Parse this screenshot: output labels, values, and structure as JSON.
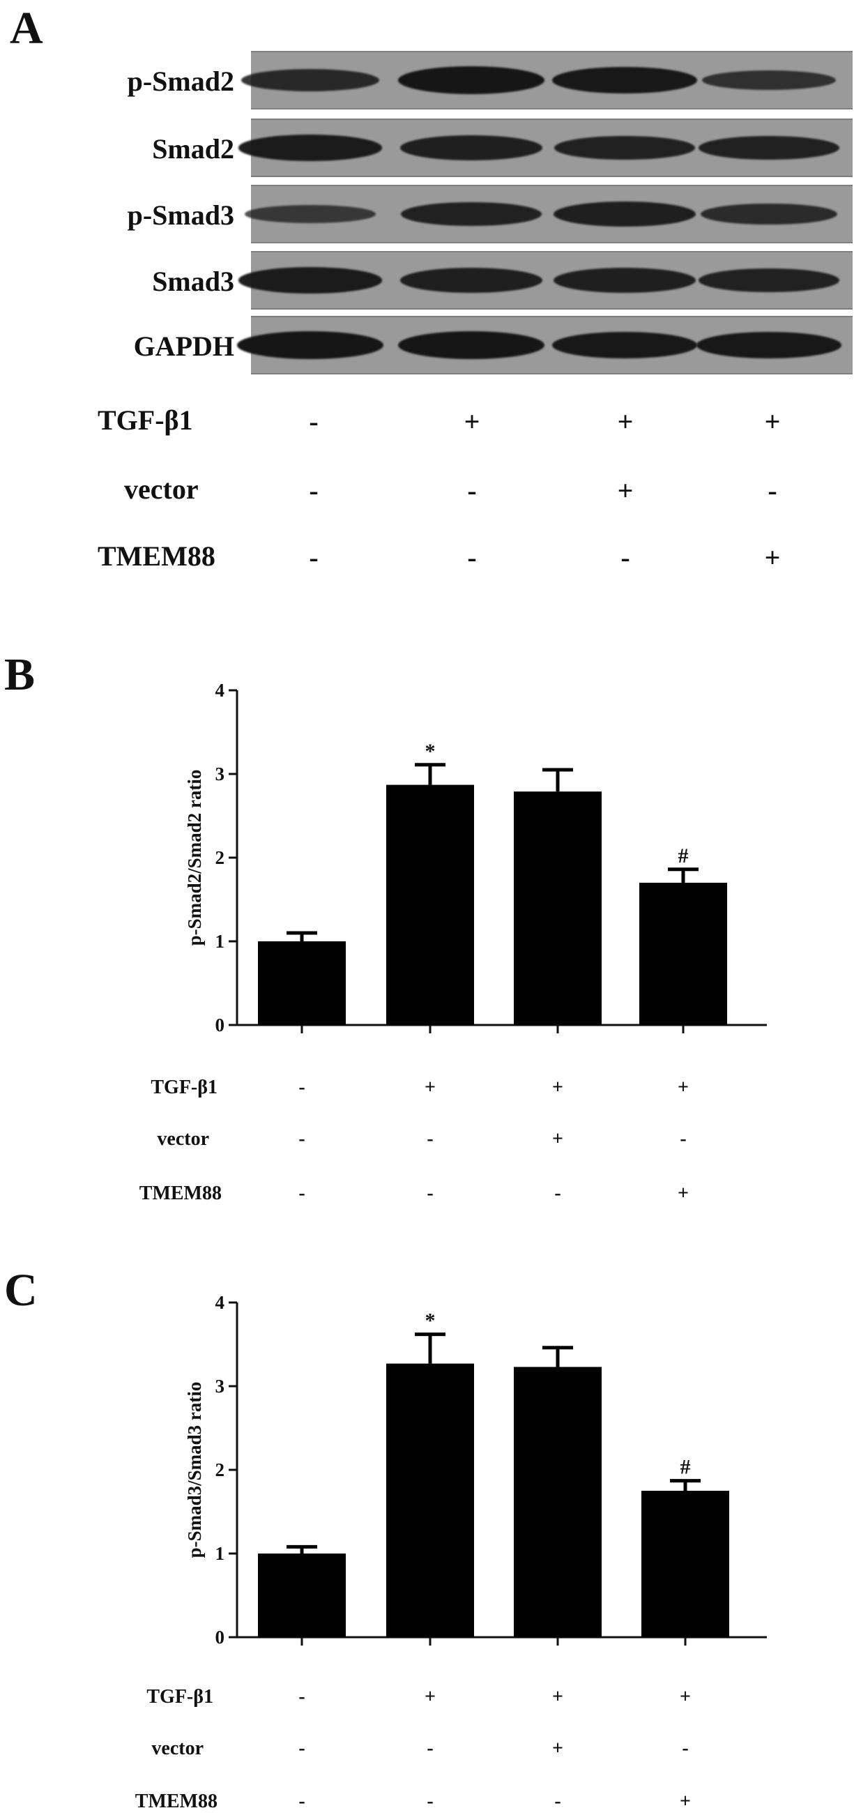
{
  "panel_a": {
    "letter": "A",
    "blots": [
      {
        "label": "p-Smad2",
        "intensity": [
          0.7,
          1.0,
          0.95,
          0.55
        ]
      },
      {
        "label": "Smad2",
        "intensity": [
          0.9,
          0.85,
          0.8,
          0.8
        ]
      },
      {
        "label": "p-Smad3",
        "intensity": [
          0.45,
          0.8,
          0.85,
          0.65
        ]
      },
      {
        "label": "Smad3",
        "intensity": [
          0.9,
          0.85,
          0.85,
          0.8
        ]
      },
      {
        "label": "GAPDH",
        "intensity": [
          1.0,
          1.0,
          0.95,
          0.95
        ]
      }
    ],
    "conditions": [
      {
        "label": "TGF-β1",
        "signs": [
          "-",
          "+",
          "+",
          "+"
        ]
      },
      {
        "label": "vector",
        "signs": [
          "-",
          "-",
          "+",
          "-"
        ]
      },
      {
        "label": "TMEM88",
        "signs": [
          "-",
          "-",
          "-",
          "+"
        ]
      }
    ]
  },
  "chart_data": [
    {
      "type": "bar",
      "panel": "B",
      "ylabel": "p-Smad2/Smad2 ratio",
      "ylim": [
        0,
        4
      ],
      "yticks": [
        "0",
        "1",
        "2",
        "3",
        "4"
      ],
      "values": [
        1.0,
        2.87,
        2.79,
        1.7
      ],
      "errors": [
        0.1,
        0.24,
        0.26,
        0.16
      ],
      "significance": [
        "",
        "*",
        "",
        "#"
      ],
      "bar_color": "#000000",
      "conditions": [
        {
          "label": "TGF-β1",
          "signs": [
            "-",
            "+",
            "+",
            "+"
          ]
        },
        {
          "label": "vector",
          "signs": [
            "-",
            "-",
            "+",
            "-"
          ]
        },
        {
          "label": "TMEM88",
          "signs": [
            "-",
            "-",
            "-",
            "+"
          ]
        }
      ]
    },
    {
      "type": "bar",
      "panel": "C",
      "ylabel": "p-Smad3/Smad3 ratio",
      "ylim": [
        0,
        4
      ],
      "yticks": [
        "0",
        "1",
        "2",
        "3",
        "4"
      ],
      "values": [
        1.0,
        3.27,
        3.23,
        1.75
      ],
      "errors": [
        0.08,
        0.35,
        0.23,
        0.12
      ],
      "significance": [
        "",
        "*",
        "",
        "#"
      ],
      "bar_color": "#000000",
      "conditions": [
        {
          "label": "TGF-β1",
          "signs": [
            "-",
            "+",
            "+",
            "+"
          ]
        },
        {
          "label": "vector",
          "signs": [
            "-",
            "-",
            "+",
            "-"
          ]
        },
        {
          "label": "TMEM88",
          "signs": [
            "-",
            "-",
            "-",
            "+"
          ]
        }
      ]
    }
  ]
}
